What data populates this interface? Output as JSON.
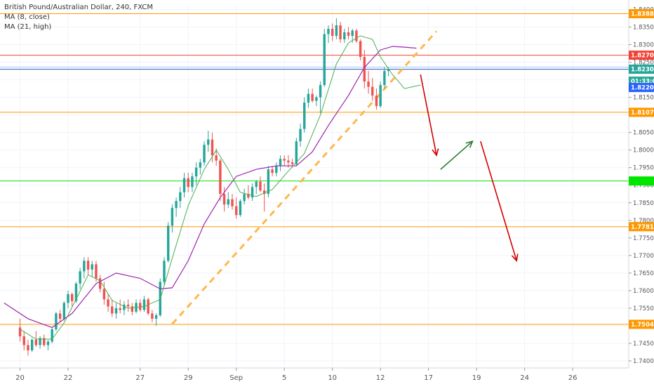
{
  "header": {
    "symbol_line": "British Pound/Australian Dollar, 240, FXCM",
    "indicators": [
      "MA (8, close)",
      "MA (21, high)"
    ]
  },
  "colors": {
    "up": "#26a69a",
    "down": "#ef5350",
    "ma_fast": "#4caf50",
    "ma_slow": "#9c27b0",
    "orange_level": "#ff9800",
    "red_level": "#f44336",
    "blue_level": "#3f51b5",
    "green_level": "#00e600",
    "trend_dash": "#ffb74d",
    "arrow_red": "#d50000",
    "arrow_green": "#2e7d32",
    "price_badge": "#26a69a",
    "blue_badge": "#2962ff"
  },
  "chart_data": {
    "type": "candlestick",
    "title": "British Pound/Australian Dollar, 240, FXCM",
    "ylim": [
      1.738,
      1.8415
    ],
    "y_ticks": [
      1.74,
      1.745,
      1.75,
      1.755,
      1.76,
      1.765,
      1.77,
      1.775,
      1.78,
      1.785,
      1.79,
      1.795,
      1.8,
      1.805,
      1.81,
      1.815,
      1.82,
      1.825,
      1.83,
      1.835,
      1.84
    ],
    "y_tick_labels": [
      "1.74000",
      "1.74500",
      "1.75000",
      "1.75500",
      "1.76000",
      "1.76500",
      "1.77000",
      "1.77500",
      "1.78000",
      "1.78500",
      "1.79000",
      "1.79500",
      "1.80000",
      "1.80500",
      "1.81000",
      "1.81500",
      "1.82000",
      "1.82500",
      "1.83000",
      "1.83500",
      "1.84000"
    ],
    "x_range": [
      -5,
      152
    ],
    "x_ticks": [
      {
        "label": "20",
        "bar": 0
      },
      {
        "label": "22",
        "bar": 12
      },
      {
        "label": "27",
        "bar": 30
      },
      {
        "label": "29",
        "bar": 42
      },
      {
        "label": "Sep",
        "bar": 54
      },
      {
        "label": "5",
        "bar": 66
      },
      {
        "label": "10",
        "bar": 78
      },
      {
        "label": "12",
        "bar": 90
      },
      {
        "label": "17",
        "bar": 102
      },
      {
        "label": "19",
        "bar": 114
      },
      {
        "label": "24",
        "bar": 126
      },
      {
        "label": "26",
        "bar": 138
      }
    ],
    "candles": [
      [
        1.7495,
        1.752,
        1.7455,
        1.747
      ],
      [
        1.747,
        1.7485,
        1.743,
        1.7445
      ],
      [
        1.7445,
        1.746,
        1.7415,
        1.743
      ],
      [
        1.743,
        1.7465,
        1.7425,
        1.746
      ],
      [
        1.746,
        1.7485,
        1.744,
        1.7445
      ],
      [
        1.7445,
        1.747,
        1.7435,
        1.7465
      ],
      [
        1.7465,
        1.7475,
        1.744,
        1.7445
      ],
      [
        1.7445,
        1.746,
        1.743,
        1.7455
      ],
      [
        1.7455,
        1.7495,
        1.745,
        1.749
      ],
      [
        1.749,
        1.754,
        1.7485,
        1.7535
      ],
      [
        1.7535,
        1.7545,
        1.751,
        1.752
      ],
      [
        1.752,
        1.757,
        1.7515,
        1.7565
      ],
      [
        1.7565,
        1.76,
        1.755,
        1.759
      ],
      [
        1.759,
        1.7595,
        1.7555,
        1.757
      ],
      [
        1.757,
        1.7625,
        1.7565,
        1.762
      ],
      [
        1.762,
        1.7665,
        1.7605,
        1.7655
      ],
      [
        1.7655,
        1.7695,
        1.7635,
        1.7685
      ],
      [
        1.7685,
        1.7695,
        1.7645,
        1.766
      ],
      [
        1.766,
        1.7685,
        1.764,
        1.7675
      ],
      [
        1.7675,
        1.7685,
        1.7625,
        1.7635
      ],
      [
        1.7635,
        1.7645,
        1.7595,
        1.7605
      ],
      [
        1.7605,
        1.7625,
        1.756,
        1.7575
      ],
      [
        1.7575,
        1.759,
        1.754,
        1.7555
      ],
      [
        1.7555,
        1.7575,
        1.7525,
        1.7535
      ],
      [
        1.7535,
        1.7565,
        1.752,
        1.755
      ],
      [
        1.755,
        1.7575,
        1.7535,
        1.7545
      ],
      [
        1.7545,
        1.757,
        1.753,
        1.756
      ],
      [
        1.756,
        1.7575,
        1.754,
        1.7555
      ],
      [
        1.7555,
        1.7565,
        1.753,
        1.754
      ],
      [
        1.754,
        1.7575,
        1.7535,
        1.7565
      ],
      [
        1.7565,
        1.7575,
        1.754,
        1.7545
      ],
      [
        1.7545,
        1.7585,
        1.754,
        1.7575
      ],
      [
        1.7575,
        1.758,
        1.753,
        1.7535
      ],
      [
        1.7535,
        1.7545,
        1.751,
        1.752
      ],
      [
        1.752,
        1.7535,
        1.75,
        1.753
      ],
      [
        1.753,
        1.7635,
        1.7525,
        1.7625
      ],
      [
        1.7625,
        1.7695,
        1.7615,
        1.7685
      ],
      [
        1.7685,
        1.7795,
        1.768,
        1.7785
      ],
      [
        1.7785,
        1.7845,
        1.7765,
        1.7835
      ],
      [
        1.7835,
        1.7865,
        1.781,
        1.7855
      ],
      [
        1.7855,
        1.7895,
        1.7835,
        1.788
      ],
      [
        1.788,
        1.7935,
        1.7865,
        1.792
      ],
      [
        1.792,
        1.7935,
        1.788,
        1.7895
      ],
      [
        1.7895,
        1.7935,
        1.788,
        1.7925
      ],
      [
        1.7925,
        1.7965,
        1.79,
        1.795
      ],
      [
        1.795,
        1.7975,
        1.793,
        1.7965
      ],
      [
        1.7965,
        1.8025,
        1.7955,
        1.8015
      ],
      [
        1.8015,
        1.8055,
        1.7995,
        1.803
      ],
      [
        1.803,
        1.805,
        1.7965,
        1.7985
      ],
      [
        1.7985,
        1.8005,
        1.7955,
        1.797
      ],
      [
        1.797,
        1.7975,
        1.7855,
        1.7875
      ],
      [
        1.7875,
        1.7895,
        1.7825,
        1.7845
      ],
      [
        1.7845,
        1.788,
        1.7835,
        1.786
      ],
      [
        1.786,
        1.7875,
        1.783,
        1.784
      ],
      [
        1.784,
        1.7865,
        1.7805,
        1.7815
      ],
      [
        1.7815,
        1.786,
        1.781,
        1.7855
      ],
      [
        1.7855,
        1.789,
        1.7845,
        1.7875
      ],
      [
        1.7875,
        1.79,
        1.786,
        1.7865
      ],
      [
        1.7865,
        1.7905,
        1.7855,
        1.7895
      ],
      [
        1.7895,
        1.7915,
        1.7875,
        1.791
      ],
      [
        1.791,
        1.7925,
        1.788,
        1.7885
      ],
      [
        1.7885,
        1.7905,
        1.7825,
        1.7875
      ],
      [
        1.7875,
        1.7955,
        1.7865,
        1.7945
      ],
      [
        1.7945,
        1.7955,
        1.7925,
        1.7935
      ],
      [
        1.7935,
        1.7965,
        1.7925,
        1.7955
      ],
      [
        1.7955,
        1.7985,
        1.794,
        1.7975
      ],
      [
        1.7975,
        1.7985,
        1.7955,
        1.797
      ],
      [
        1.797,
        1.7985,
        1.795,
        1.7965
      ],
      [
        1.7965,
        1.7975,
        1.795,
        1.796
      ],
      [
        1.796,
        1.8035,
        1.7955,
        1.8025
      ],
      [
        1.8025,
        1.8075,
        1.801,
        1.806
      ],
      [
        1.806,
        1.815,
        1.805,
        1.8135
      ],
      [
        1.8135,
        1.8175,
        1.812,
        1.816
      ],
      [
        1.816,
        1.8175,
        1.8135,
        1.814
      ],
      [
        1.814,
        1.8155,
        1.8125,
        1.815
      ],
      [
        1.815,
        1.8195,
        1.8105,
        1.8185
      ],
      [
        1.8185,
        1.8345,
        1.818,
        1.833
      ],
      [
        1.833,
        1.8355,
        1.8305,
        1.8345
      ],
      [
        1.8345,
        1.836,
        1.831,
        1.8325
      ],
      [
        1.8325,
        1.8375,
        1.8315,
        1.8355
      ],
      [
        1.8355,
        1.8365,
        1.8305,
        1.8315
      ],
      [
        1.8315,
        1.8345,
        1.8305,
        1.8335
      ],
      [
        1.8335,
        1.835,
        1.8315,
        1.8325
      ],
      [
        1.8325,
        1.8345,
        1.8305,
        1.834
      ],
      [
        1.834,
        1.8345,
        1.8305,
        1.831
      ],
      [
        1.831,
        1.8315,
        1.8255,
        1.8265
      ],
      [
        1.8265,
        1.8285,
        1.8175,
        1.8195
      ],
      [
        1.8195,
        1.8225,
        1.816,
        1.818
      ],
      [
        1.818,
        1.8205,
        1.814,
        1.8155
      ],
      [
        1.8155,
        1.8175,
        1.8115,
        1.8125
      ],
      [
        1.8125,
        1.8195,
        1.812,
        1.8185
      ],
      [
        1.8185,
        1.8235,
        1.8175,
        1.8225
      ],
      [
        1.8225,
        1.8235,
        1.821,
        1.823
      ]
    ],
    "ma_fast": [
      [
        0,
        1.749
      ],
      [
        4,
        1.7462
      ],
      [
        8,
        1.7462
      ],
      [
        11,
        1.7508
      ],
      [
        14,
        1.7575
      ],
      [
        17,
        1.7645
      ],
      [
        20,
        1.7628
      ],
      [
        23,
        1.7572
      ],
      [
        27,
        1.755
      ],
      [
        31,
        1.7555
      ],
      [
        35,
        1.7575
      ],
      [
        38,
        1.7692
      ],
      [
        42,
        1.7842
      ],
      [
        46,
        1.7945
      ],
      [
        49,
        1.8
      ],
      [
        52,
        1.7945
      ],
      [
        55,
        1.788
      ],
      [
        59,
        1.7868
      ],
      [
        63,
        1.7888
      ],
      [
        67,
        1.794
      ],
      [
        71,
        1.799
      ],
      [
        75,
        1.81
      ],
      [
        79,
        1.8245
      ],
      [
        82,
        1.8305
      ],
      [
        85,
        1.8325
      ],
      [
        88,
        1.8315
      ],
      [
        90,
        1.8265
      ],
      [
        93,
        1.8215
      ],
      [
        96,
        1.8175
      ],
      [
        100,
        1.8185
      ]
    ],
    "ma_slow": [
      [
        -4,
        1.7565
      ],
      [
        2,
        1.752
      ],
      [
        8,
        1.7495
      ],
      [
        13,
        1.7535
      ],
      [
        19,
        1.762
      ],
      [
        24,
        1.765
      ],
      [
        30,
        1.7635
      ],
      [
        35,
        1.7605
      ],
      [
        38,
        1.7608
      ],
      [
        42,
        1.7685
      ],
      [
        46,
        1.779
      ],
      [
        50,
        1.7865
      ],
      [
        54,
        1.7925
      ],
      [
        59,
        1.7945
      ],
      [
        64,
        1.7955
      ],
      [
        69,
        1.7955
      ],
      [
        73,
        1.7995
      ],
      [
        77,
        1.807
      ],
      [
        82,
        1.8155
      ],
      [
        86,
        1.8235
      ],
      [
        90,
        1.8285
      ],
      [
        93,
        1.8295
      ],
      [
        96,
        1.8293
      ],
      [
        99,
        1.829
      ]
    ],
    "horizontal_levels": [
      {
        "price": 1.8388,
        "label": "1.83880",
        "color": "orange"
      },
      {
        "price": 1.827,
        "label": "1.82700",
        "color": "red"
      },
      {
        "price": 1.823,
        "label": "",
        "color": "blue"
      },
      {
        "price": 1.81075,
        "label": "1.81075",
        "color": "orange"
      },
      {
        "price": 1.7912,
        "label": "",
        "color": "green"
      },
      {
        "price": 1.77819,
        "label": "1.77819",
        "color": "orange"
      },
      {
        "price": 1.75041,
        "label": "1.75041",
        "color": "orange"
      }
    ],
    "price_badges": [
      {
        "price": 1.82302,
        "label": "1.82302",
        "color": "teal"
      },
      {
        "price": 1.8196,
        "label": "01:33:05",
        "color": "teal"
      },
      {
        "price": 1.8178,
        "label": "1.82200",
        "color": "blue"
      }
    ],
    "trend_line": {
      "from": [
        38,
        1.7505
      ],
      "to": [
        104,
        1.8338
      ]
    },
    "arrows": [
      {
        "from": [
          100,
          1.8215
        ],
        "to": [
          104,
          1.7985
        ],
        "color": "red"
      },
      {
        "from": [
          105,
          1.7945
        ],
        "to": [
          113,
          1.8025
        ],
        "color": "green"
      },
      {
        "from": [
          115,
          1.8025
        ],
        "to": [
          124,
          1.7685
        ],
        "color": "red"
      }
    ]
  }
}
